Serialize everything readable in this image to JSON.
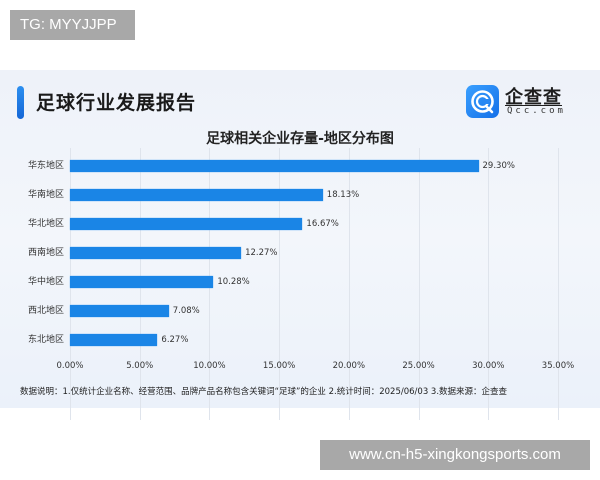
{
  "watermarks": {
    "top": "TG: MYYJJPP",
    "bottom": "www.cn-h5-xingkongsports.com"
  },
  "header": {
    "title": "足球行业发展报告",
    "logo": {
      "name_cn": "企查查",
      "name_en": "Qcc.com",
      "icon": "qcc-logo-icon",
      "color": "#1a7ff0"
    }
  },
  "colors": {
    "bar": "#1a85e6",
    "accent": "#1a7ff0",
    "background": "#eef2f9"
  },
  "chart_data": {
    "type": "bar",
    "orientation": "horizontal",
    "title": "足球相关企业存量-地区分布图",
    "categories": [
      "华东地区",
      "华南地区",
      "华北地区",
      "西南地区",
      "华中地区",
      "西北地区",
      "东北地区"
    ],
    "values": [
      29.3,
      18.13,
      16.67,
      12.27,
      10.28,
      7.08,
      6.27
    ],
    "value_labels": [
      "29.30%",
      "18.13%",
      "16.67%",
      "12.27%",
      "10.28%",
      "7.08%",
      "6.27%"
    ],
    "xlabel": "",
    "ylabel": "",
    "xlim": [
      0,
      35
    ],
    "x_ticks": [
      "0.00%",
      "5.00%",
      "10.00%",
      "15.00%",
      "20.00%",
      "25.00%",
      "30.00%",
      "35.00%"
    ],
    "grid": true,
    "legend": null,
    "unit": "%"
  },
  "footnote": "数据说明：1.仅统计企业名称、经营范围、品牌产品名称包含关键词“足球”的企业   2.统计时间：2025/06/03   3.数据来源：企查查"
}
